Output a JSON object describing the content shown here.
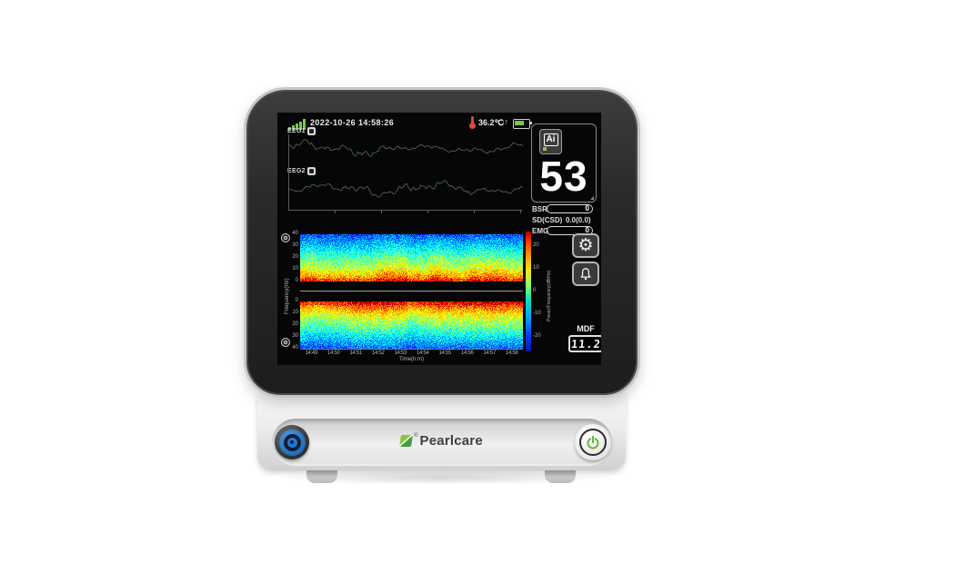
{
  "device": {
    "brand": "Pearlcare",
    "trademark": "®"
  },
  "status_bar": {
    "datetime": "2022-10-26 14:58:26",
    "temperature": "36.2℃",
    "trend_arrows": "↓↑"
  },
  "eeg": {
    "ch1_label": "EEG1",
    "ch2_label": "EEG2"
  },
  "ai_panel": {
    "ai_label": "Ai",
    "index_value": "53"
  },
  "metrics": {
    "bsr_label": "BSR",
    "bsr_value": "0",
    "sd_label": "SD(CSD)",
    "sd_value": "0.0(0.0)",
    "emg_label": "EMG",
    "emg_value": "0"
  },
  "side_buttons": {
    "gear_icon": "⚙"
  },
  "mdf": {
    "label": "MDF",
    "value": "11.2"
  },
  "chart_data": {
    "type": "heatmap",
    "x": [
      "14:49",
      "14:50",
      "14:51",
      "14:52",
      "14:53",
      "14:54",
      "14:55",
      "14:56",
      "14:57",
      "14:58"
    ],
    "xlabel": "Time(h:m)",
    "ylabel": "Frequency(Hz)",
    "y_ticks_ch1": [
      "40",
      "30",
      "20",
      "10",
      "0"
    ],
    "y_ticks_ch2": [
      "0",
      "10",
      "20",
      "30",
      "40"
    ],
    "y_range_hz": [
      0,
      40
    ],
    "colorbar_label": "Power/Frequency(dB/Hz)",
    "colorbar_ticks": [
      "20",
      "10",
      "0",
      "-10",
      "-20"
    ]
  },
  "colors": {
    "accent_green": "#7ac943",
    "alarm_red": "#e0483e",
    "knob_blue": "#2478cf",
    "logo_green": "#8dc63f",
    "eeg_trace": "#4d6f52"
  }
}
